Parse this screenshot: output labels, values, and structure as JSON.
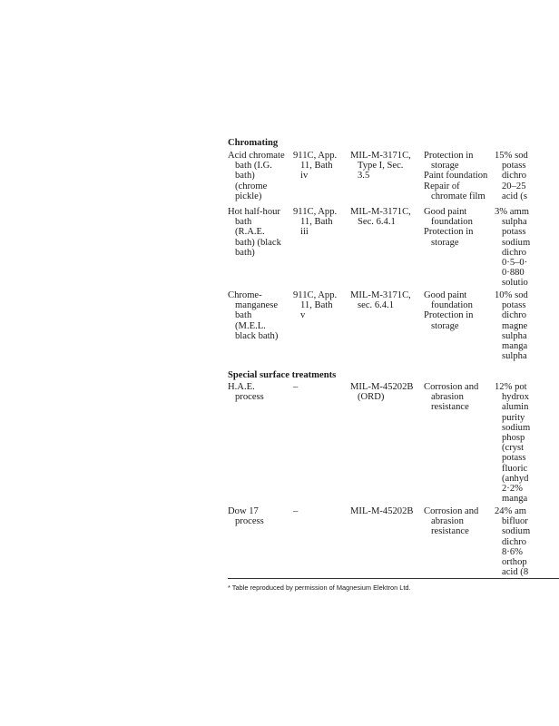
{
  "sections": [
    {
      "heading": "Chromating",
      "rows": [
        {
          "cells": [
            [
              "Acid chromate",
              "bath (I.G.",
              "bath)",
              "(chrome",
              "pickle)"
            ],
            [
              "911C, App.",
              "11, Bath",
              "iv"
            ],
            [
              "MIL-M-3171C,",
              "Type I, Sec.",
              "3.5"
            ],
            [
              "Protection in",
              "storage",
              "Paint foundation",
              "Repair of",
              "chromate film"
            ],
            [
              "15% sod",
              "potass",
              "dichro",
              "20–25",
              "acid (s"
            ]
          ]
        },
        {
          "cells": [
            [
              "Hot half-hour",
              "bath",
              "(R.A.E.",
              "bath) (black",
              "bath)"
            ],
            [
              "911C, App.",
              "11, Bath",
              "iii"
            ],
            [
              "MIL-M-3171C,",
              "Sec. 6.4.1"
            ],
            [
              "Good paint",
              "foundation",
              "Protection in",
              "storage"
            ],
            [
              "3% amm",
              "sulpha",
              "potass",
              "sodium",
              "dichro",
              "0·5–0·",
              "0·880",
              "solutio"
            ]
          ]
        },
        {
          "cells": [
            [
              "Chrome-",
              "manganese",
              "bath",
              "(M.E.L.",
              "black bath)"
            ],
            [
              "911C, App.",
              "11, Bath",
              "v"
            ],
            [
              "MIL-M-3171C,",
              "sec. 6.4.1"
            ],
            [
              "Good paint",
              "foundation",
              "Protection in",
              "storage"
            ],
            [
              "10% sod",
              "potass",
              "dichro",
              "magne",
              "sulpha",
              "manga",
              "sulpha"
            ]
          ]
        }
      ]
    },
    {
      "heading": "Special surface treatments",
      "rows": [
        {
          "cells": [
            [
              "H.A.E.",
              "process"
            ],
            [
              "–"
            ],
            [
              "MIL-M-45202B",
              "(ORD)"
            ],
            [
              "Corrosion and",
              "abrasion",
              "resistance"
            ],
            [
              "12% pot",
              "hydrox",
              "alumin",
              "purity",
              "sodium",
              "phosp",
              "(cryst",
              "potass",
              "fluoric",
              "(anhyd",
              "2·2%",
              "manga"
            ]
          ]
        },
        {
          "cells": [
            [
              "Dow 17",
              "process"
            ],
            [
              "–"
            ],
            [
              "MIL-M-45202B"
            ],
            [
              "Corrosion and",
              "abrasion",
              "resistance"
            ],
            [
              "24% am",
              "bifluor",
              "sodium",
              "dichro",
              "8·6%",
              "orthop",
              "acid (8"
            ]
          ]
        }
      ]
    }
  ],
  "footnote": "* Table reproduced by permission of Magnesium Elektron Ltd."
}
